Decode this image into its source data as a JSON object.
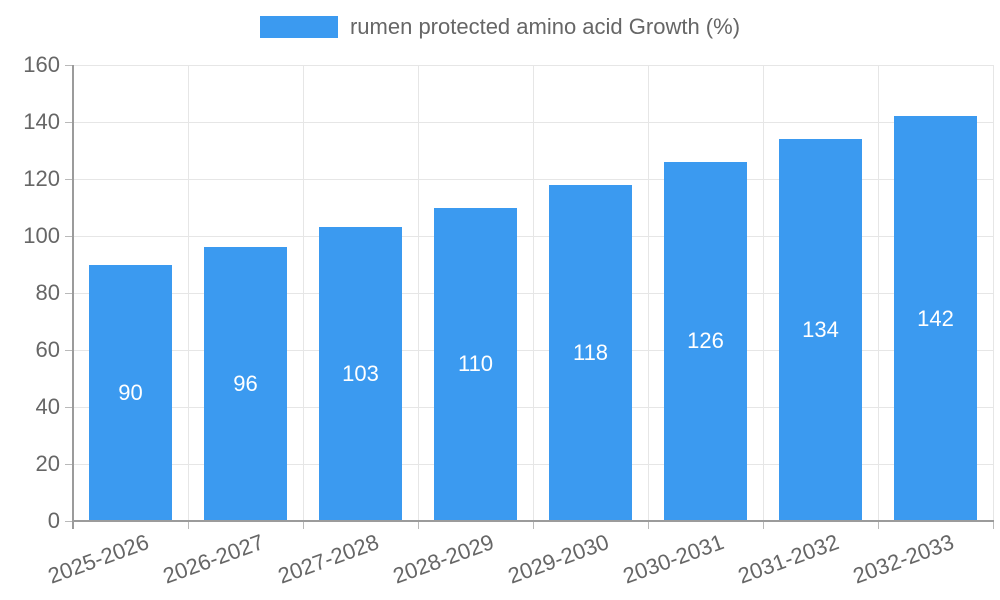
{
  "legend": {
    "label": "rumen protected amino acid Growth (%)"
  },
  "colors": {
    "bar": "#3b9af0",
    "bar_label": "#ffffff",
    "axis_text": "#666666",
    "grid": "#e6e6e6",
    "axis_border": "#9b9b9b"
  },
  "chart_data": {
    "type": "bar",
    "title": "",
    "series_name": "rumen protected amino acid Growth (%)",
    "categories": [
      "2025-2026",
      "2026-2027",
      "2027-2028",
      "2028-2029",
      "2029-2030",
      "2030-2031",
      "2031-2032",
      "2032-2033"
    ],
    "values": [
      90,
      96,
      103,
      110,
      118,
      126,
      134,
      142
    ],
    "bar_labels": [
      "90",
      "96",
      "103",
      "110",
      "118",
      "126",
      "134",
      "142"
    ],
    "xlabel": "",
    "ylabel": "",
    "ylim": [
      0,
      160
    ],
    "yticks": [
      0,
      20,
      40,
      60,
      80,
      100,
      120,
      140,
      160
    ],
    "grid": true,
    "legend_position": "top",
    "x_label_rotation_deg": -20,
    "bar_label_position": "center"
  }
}
